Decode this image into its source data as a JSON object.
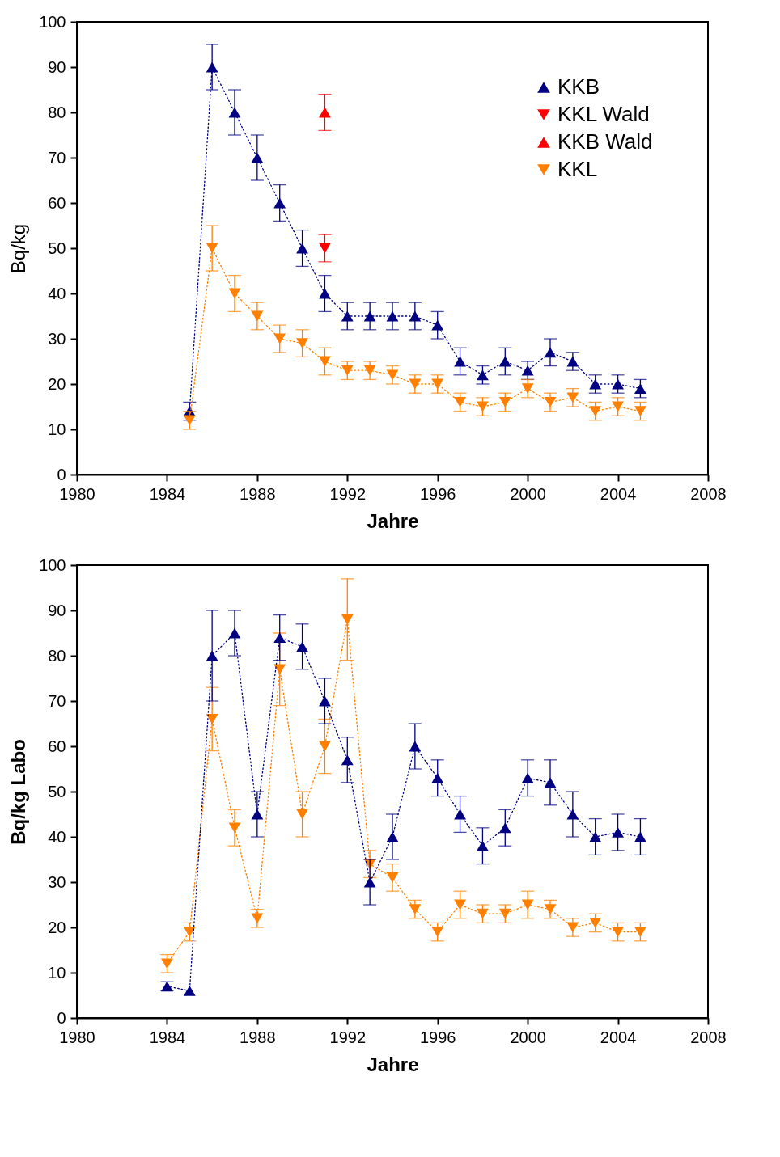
{
  "chart_data": [
    {
      "type": "line",
      "xlabel": "Jahre",
      "ylabel": "Bq/kg",
      "xlim": [
        1980,
        2008
      ],
      "xticks": [
        1980,
        1984,
        1988,
        1992,
        1996,
        2000,
        2004,
        2008
      ],
      "ylim": [
        0,
        100
      ],
      "yticks": [
        0,
        10,
        20,
        30,
        40,
        50,
        60,
        70,
        80,
        90,
        100
      ],
      "legend": "top right",
      "grid": false,
      "series": [
        {
          "name": "KKB",
          "color": "#000080",
          "marker": "triangle",
          "line_style": "dotted",
          "x": [
            1985,
            1986,
            1987,
            1988,
            1989,
            1990,
            1991,
            1992,
            1993,
            1994,
            1995,
            1996,
            1997,
            1998,
            1999,
            2000,
            2001,
            2002,
            2003,
            2004,
            2005
          ],
          "values": [
            14,
            90,
            80,
            70,
            60,
            50,
            40,
            35,
            35,
            35,
            35,
            33,
            25,
            22,
            25,
            23,
            27,
            25,
            20,
            20,
            19
          ],
          "errors": [
            2,
            5,
            5,
            5,
            4,
            4,
            4,
            3,
            3,
            3,
            3,
            3,
            3,
            2,
            3,
            2,
            3,
            2,
            2,
            2,
            2
          ]
        },
        {
          "name": "KKL Wald",
          "color": "#ff0000",
          "marker": "triangle-down",
          "line_style": "solid",
          "x": [
            1991
          ],
          "values": [
            50
          ],
          "errors": [
            3
          ]
        },
        {
          "name": "KKB Wald",
          "color": "#ff0000",
          "marker": "triangle",
          "line_style": "solid",
          "x": [
            1991
          ],
          "values": [
            80
          ],
          "errors": [
            4
          ]
        },
        {
          "name": "KKL",
          "color": "#ff8000",
          "marker": "triangle-down",
          "line_style": "dotted",
          "x": [
            1985,
            1986,
            1987,
            1988,
            1989,
            1990,
            1991,
            1992,
            1993,
            1994,
            1995,
            1996,
            1997,
            1998,
            1999,
            2000,
            2001,
            2002,
            2003,
            2004,
            2005
          ],
          "values": [
            12,
            50,
            40,
            35,
            30,
            29,
            25,
            23,
            23,
            22,
            20,
            20,
            16,
            15,
            16,
            19,
            16,
            17,
            14,
            15,
            14
          ],
          "errors": [
            2,
            5,
            4,
            3,
            3,
            3,
            3,
            2,
            2,
            2,
            2,
            2,
            2,
            2,
            2,
            2,
            2,
            2,
            2,
            2,
            2
          ]
        }
      ]
    },
    {
      "type": "line",
      "xlabel": "Jahre",
      "ylabel": "Bq/kg  Labo",
      "xlim": [
        1980,
        2008
      ],
      "xticks": [
        1980,
        1984,
        1988,
        1992,
        1996,
        2000,
        2004,
        2008
      ],
      "ylim": [
        0,
        100
      ],
      "yticks": [
        0,
        10,
        20,
        30,
        40,
        50,
        60,
        70,
        80,
        90,
        100
      ],
      "legend": "top right",
      "grid": false,
      "series": [
        {
          "name": "KKL",
          "color": "#ff8000",
          "marker": "triangle-down",
          "line_style": "dotted",
          "x": [
            1984,
            1985,
            1986,
            1987,
            1988,
            1989,
            1990,
            1991,
            1992,
            1993,
            1994,
            1995,
            1996,
            1997,
            1998,
            1999,
            2000,
            2001,
            2002,
            2003,
            2004,
            2005
          ],
          "values": [
            12,
            19,
            66,
            42,
            22,
            77,
            45,
            60,
            88,
            34,
            31,
            24,
            19,
            25,
            23,
            23,
            25,
            24,
            20,
            21,
            19,
            19
          ],
          "errors": [
            2,
            2,
            7,
            4,
            2,
            8,
            5,
            6,
            9,
            3,
            3,
            2,
            2,
            3,
            2,
            2,
            3,
            2,
            2,
            2,
            2,
            2
          ]
        },
        {
          "name": "KKB",
          "color": "#000080",
          "marker": "triangle",
          "line_style": "dotted",
          "x": [
            1984,
            1985,
            1986,
            1987,
            1988,
            1989,
            1990,
            1991,
            1992,
            1993,
            1994,
            1995,
            1996,
            1997,
            1998,
            1999,
            2000,
            2001,
            2002,
            2003,
            2004,
            2005
          ],
          "values": [
            7,
            6,
            80,
            85,
            45,
            84,
            82,
            70,
            57,
            30,
            40,
            60,
            53,
            45,
            38,
            42,
            53,
            52,
            45,
            40,
            41,
            40
          ],
          "errors": [
            1,
            null,
            10,
            5,
            5,
            5,
            5,
            5,
            5,
            5,
            5,
            5,
            4,
            4,
            4,
            4,
            4,
            5,
            5,
            4,
            4,
            4
          ]
        }
      ]
    }
  ]
}
